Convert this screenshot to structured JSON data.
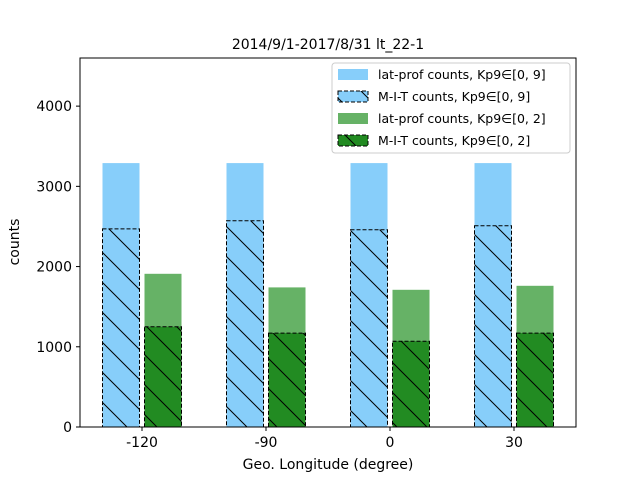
{
  "chart_data": {
    "type": "bar",
    "title": "2014/9/1-2017/8/31  lt_22-1",
    "xlabel": "Geo. Longitude (degree)",
    "ylabel": "counts",
    "categories": [
      "-120",
      "-90",
      "0",
      "30"
    ],
    "ylim": [
      0,
      4600
    ],
    "yticks": [
      0,
      1000,
      2000,
      3000,
      4000
    ],
    "grid": false,
    "legend_position": "top-right",
    "series": [
      {
        "name": "lat-prof counts, Kp9∈[0, 9]",
        "values": [
          3290,
          3290,
          3290,
          3290
        ],
        "color": "#87cefa",
        "hatched": false,
        "group": 0
      },
      {
        "name": "M-I-T counts, Kp9∈[0, 9]",
        "values": [
          2470,
          2570,
          2460,
          2510
        ],
        "color": "#87cefa",
        "hatched": true,
        "group": 0
      },
      {
        "name": "lat-prof counts, Kp9∈[0, 2]",
        "values": [
          1910,
          1740,
          1710,
          1760
        ],
        "color": "#66b266",
        "hatched": false,
        "group": 1
      },
      {
        "name": "M-I-T counts, Kp9∈[0, 2]",
        "values": [
          1250,
          1170,
          1070,
          1170
        ],
        "color": "#228b22",
        "hatched": true,
        "group": 1
      }
    ]
  }
}
